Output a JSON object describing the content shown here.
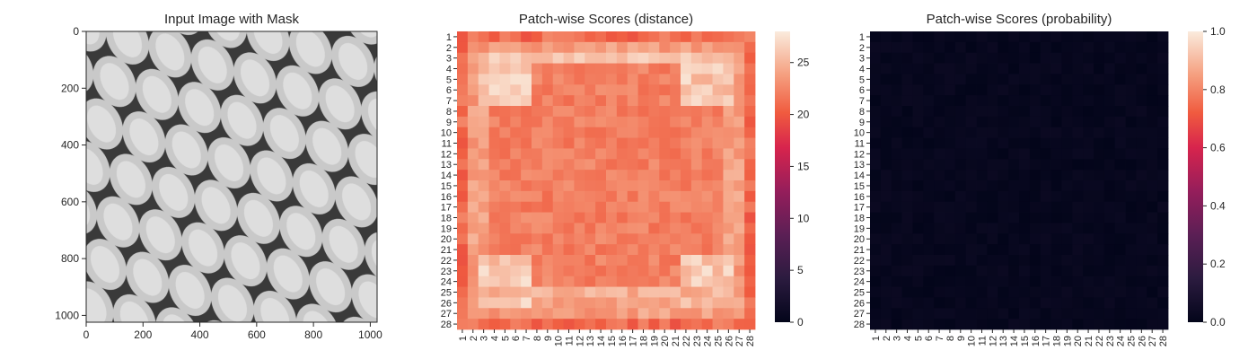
{
  "chart_data": [
    {
      "type": "image",
      "title": "Input Image with Mask",
      "xlabel": "",
      "ylabel": "",
      "x_ticks": [
        0,
        200,
        400,
        600,
        800,
        1000
      ],
      "y_ticks": [
        0,
        200,
        400,
        600,
        800,
        1000
      ],
      "xlim": [
        0,
        1024
      ],
      "ylim": [
        1024,
        0
      ],
      "grid": false
    },
    {
      "type": "heatmap",
      "title": "Patch-wise Scores (distance)",
      "xlabel": "",
      "ylabel": "",
      "x_ticks": [
        "1",
        "2",
        "3",
        "4",
        "5",
        "6",
        "7",
        "8",
        "9",
        "10",
        "11",
        "12",
        "13",
        "14",
        "15",
        "16",
        "17",
        "18",
        "19",
        "20",
        "21",
        "22",
        "23",
        "24",
        "25",
        "26",
        "27",
        "28"
      ],
      "y_ticks": [
        "1",
        "2",
        "3",
        "4",
        "5",
        "6",
        "7",
        "8",
        "9",
        "10",
        "11",
        "12",
        "13",
        "14",
        "15",
        "16",
        "17",
        "18",
        "19",
        "20",
        "21",
        "22",
        "23",
        "24",
        "25",
        "26",
        "27",
        "28"
      ],
      "colorbar": {
        "ticks": [
          0,
          5,
          10,
          15,
          20,
          25
        ],
        "range": [
          0,
          28
        ]
      },
      "value_range_observed": [
        17,
        28
      ],
      "grid": false
    },
    {
      "type": "heatmap",
      "title": "Patch-wise Scores (probability)",
      "xlabel": "",
      "ylabel": "",
      "x_ticks": [
        "1",
        "2",
        "3",
        "4",
        "5",
        "6",
        "7",
        "8",
        "9",
        "10",
        "11",
        "12",
        "13",
        "14",
        "15",
        "16",
        "17",
        "18",
        "19",
        "20",
        "21",
        "22",
        "23",
        "24",
        "25",
        "26",
        "27",
        "28"
      ],
      "y_ticks": [
        "1",
        "2",
        "3",
        "4",
        "5",
        "6",
        "7",
        "8",
        "9",
        "10",
        "11",
        "12",
        "13",
        "14",
        "15",
        "16",
        "17",
        "18",
        "19",
        "20",
        "21",
        "22",
        "23",
        "24",
        "25",
        "26",
        "27",
        "28"
      ],
      "colorbar": {
        "ticks": [
          "0.0",
          "0.2",
          "0.4",
          "0.6",
          "0.8",
          "1.0"
        ],
        "range": [
          0,
          1
        ]
      },
      "value_range_observed": [
        0.0,
        0.03
      ],
      "grid": false
    }
  ],
  "colors": {
    "background": "#ffffff",
    "axis": "#262626",
    "cmap_low": "#03051a",
    "cmap_high": "#faebdd"
  }
}
